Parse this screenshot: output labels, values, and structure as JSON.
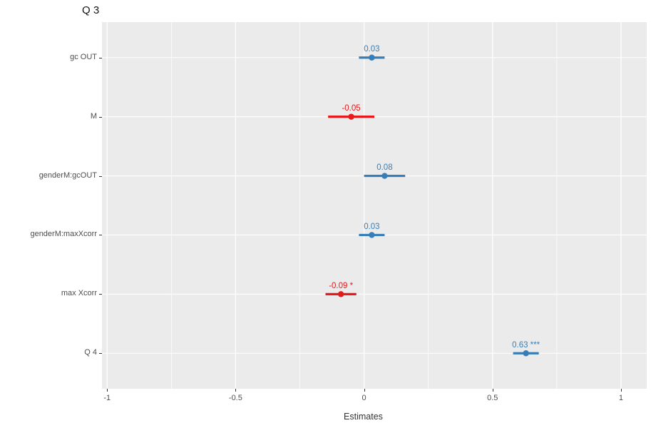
{
  "title": "Q 3",
  "chart_data": {
    "type": "scatter",
    "subtype": "horizontal-coefficient-forest-plot",
    "title": "Q 3",
    "xlabel": "Estimates",
    "ylabel": "",
    "xlim": [
      -1.02,
      1.1
    ],
    "x_ticks": [
      -1,
      -0.5,
      0,
      0.5,
      1
    ],
    "x_tick_labels": [
      "-1",
      "-0.5",
      "0",
      "0.5",
      "1"
    ],
    "x_minor_ticks": [
      -0.75,
      -0.25,
      0.25,
      0.75
    ],
    "grid": true,
    "legend": false,
    "categories": [
      "gc OUT",
      "M",
      "genderM:gcOUT",
      "genderM:maxXcorr",
      "max Xcorr",
      "Q 4"
    ],
    "points": [
      {
        "label": "gc OUT",
        "estimate": 0.03,
        "ci_low": -0.02,
        "ci_high": 0.08,
        "display": "0.03",
        "color": "#377EB8"
      },
      {
        "label": "M",
        "estimate": -0.05,
        "ci_low": -0.14,
        "ci_high": 0.04,
        "display": "-0.05",
        "color": "#E41A1C"
      },
      {
        "label": "genderM:gcOUT",
        "estimate": 0.08,
        "ci_low": 0.0,
        "ci_high": 0.16,
        "display": "0.08",
        "color": "#377EB8"
      },
      {
        "label": "genderM:maxXcorr",
        "estimate": 0.03,
        "ci_low": -0.02,
        "ci_high": 0.08,
        "display": "0.03",
        "color": "#377EB8"
      },
      {
        "label": "max Xcorr",
        "estimate": -0.09,
        "ci_low": -0.15,
        "ci_high": -0.03,
        "display": "-0.09 *",
        "color": "#E41A1C"
      },
      {
        "label": "Q 4",
        "estimate": 0.63,
        "ci_low": 0.58,
        "ci_high": 0.68,
        "display": "0.63 ***",
        "color": "#377EB8"
      }
    ],
    "colors": {
      "positive": "#377EB8",
      "negative": "#E41A1C",
      "panel_bg": "#EBEBEB",
      "grid_major": "#FFFFFF",
      "grid_minor": "#FFFFFF",
      "axis_text": "#4D4D4D"
    }
  }
}
